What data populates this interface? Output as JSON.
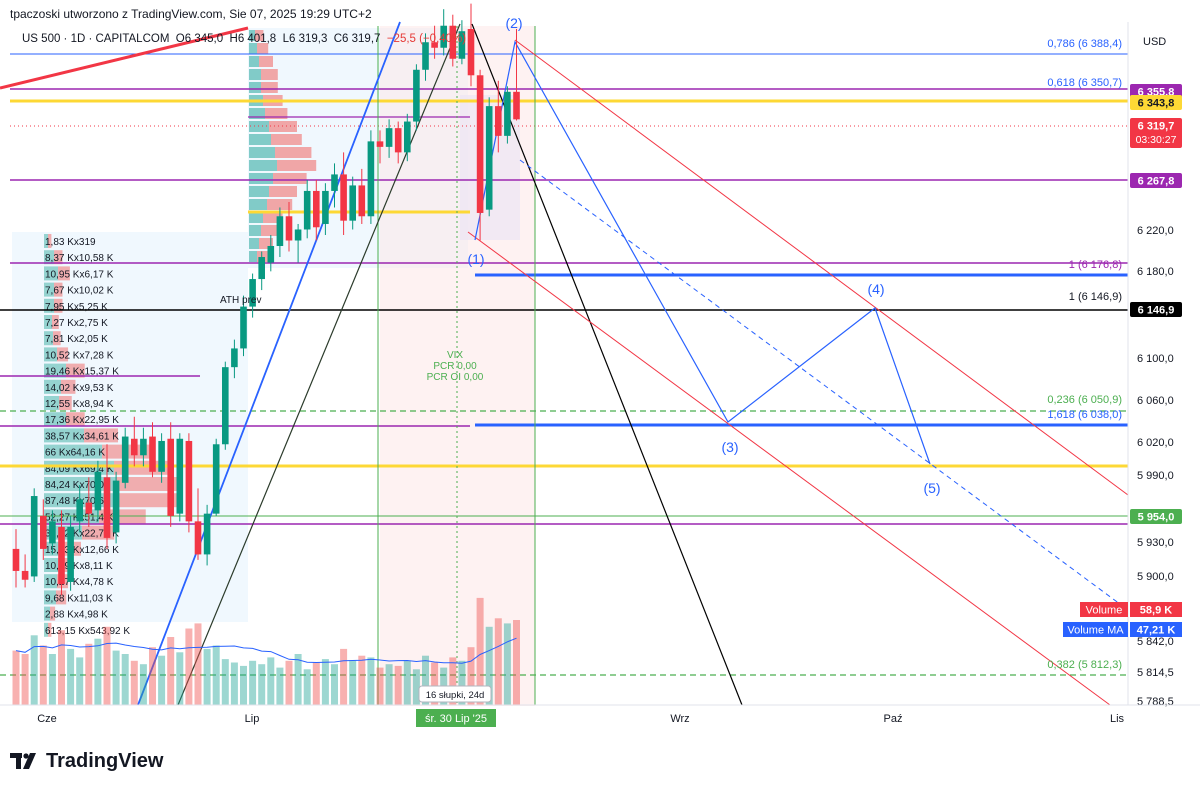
{
  "header": {
    "publisher_line": "tpaczoski utworzono z TradingView.com, Sie 07, 2025 19:29 UTC+2"
  },
  "symbol_line": {
    "name": "US 500 · 1D · CAPITALCOM",
    "open": "O6 345,0",
    "high": "H6 401,8",
    "low": "L6 319,3",
    "close": "C6 319,7",
    "change": "−25,5 (−0,40%)"
  },
  "chart_data": {
    "type": "candlestick",
    "symbol": "US 500",
    "timeframe": "1D",
    "currency_label": "USD",
    "y_axis_ticks": [
      "6 220,0",
      "6 180,0",
      "6 100,0",
      "6 060,0",
      "6 020,0",
      "5 990,0",
      "5 930,0",
      "5 900,0",
      "5 842,0",
      "5 814,5",
      "5 788,5"
    ],
    "x_axis_ticks": [
      "Cze",
      "Lip",
      "Wrz",
      "Paź",
      "Lis"
    ],
    "x_axis_highlight": "śr. 30 Lip '25",
    "range_tooltip": "16 słupki, 24d",
    "price_badges": [
      {
        "label": "6 355,8",
        "color": "#9c27b0"
      },
      {
        "label": "6 343,8",
        "color": "#fdd835"
      },
      {
        "label": "6 319,7",
        "sub": "03:30:27",
        "color": "#f23645"
      },
      {
        "label": "6 267,8",
        "color": "#9c27b0"
      },
      {
        "label": "6 146,9",
        "color": "#000000"
      },
      {
        "label": "5 954,0",
        "color": "#4caf50"
      }
    ],
    "volume_badges": [
      {
        "name": "Volume",
        "value": "58,9 K",
        "color": "#f23645"
      },
      {
        "name": "Volume MA",
        "value": "47,21 K",
        "color": "#2962ff"
      }
    ],
    "fib_levels": [
      {
        "label": "0,786 (6 388,4)",
        "color": "#2962ff"
      },
      {
        "label": "0,618 (6 350,7)",
        "color": "#2962ff"
      },
      {
        "label": "1 (6 176,8)",
        "color": "#9c27b0"
      },
      {
        "label": "1 (6 146,9)",
        "color": "#131722"
      },
      {
        "label": "0,236 (6 050,9)",
        "color": "#4caf50"
      },
      {
        "label": "1,618 (6 038,0)",
        "color": "#2962ff"
      },
      {
        "label": "0,382 (5 812,3)",
        "color": "#4caf50"
      }
    ],
    "wave_labels": [
      "(1)",
      "(2)",
      "(3)",
      "(4)",
      "(5)"
    ],
    "volume_profile_labels": [
      "1,83 Kx319",
      "8,37 Kx10,58 K",
      "10,95 Kx6,17 K",
      "7,67 Kx10,02 K",
      "7,95 Kx5,25 K",
      "7,27 Kx2,75 K",
      "7,81 Kx2,05 K",
      "10,52 Kx7,28 K",
      "19,46 Kx15,37 K",
      "14,02 Kx9,53 K",
      "12,55 Kx8,94 K",
      "17,36 Kx22,95 K",
      "38,57 Kx34,61 K",
      "66 Kx64,16 K",
      "84,09 Kx69,4 K",
      "84,24 Kx70,01 K",
      "87,48 Kx70,63 K",
      "52,27 Kx51,4 K",
      "31,62 Kx22,72 K",
      "15,33 Kx12,66 K",
      "10,89 Kx8,11 K",
      "10,27 Kx4,78 K",
      "9,68 Kx11,03 K",
      "2,88 Kx4,98 K",
      "613,15 Kx543,92 K"
    ],
    "annotations": [
      "ATH prev",
      "VIX",
      "PCR 0,00",
      "PCR OI 0,00"
    ],
    "candles": [
      {
        "t": "d01",
        "o": 5930,
        "h": 5948,
        "l": 5895,
        "c": 5910
      },
      {
        "t": "d02",
        "o": 5910,
        "h": 5925,
        "l": 5895,
        "c": 5902
      },
      {
        "t": "d03",
        "o": 5905,
        "h": 5985,
        "l": 5900,
        "c": 5978
      },
      {
        "t": "d04",
        "o": 5960,
        "h": 5975,
        "l": 5920,
        "c": 5930
      },
      {
        "t": "d05",
        "o": 5935,
        "h": 5965,
        "l": 5925,
        "c": 5955
      },
      {
        "t": "d06",
        "o": 5950,
        "h": 5965,
        "l": 5888,
        "c": 5898
      },
      {
        "t": "d07",
        "o": 5900,
        "h": 5960,
        "l": 5892,
        "c": 5950
      },
      {
        "t": "d08",
        "o": 5955,
        "h": 5988,
        "l": 5945,
        "c": 5975
      },
      {
        "t": "d09",
        "o": 5972,
        "h": 5995,
        "l": 5950,
        "c": 5962
      },
      {
        "t": "d10",
        "o": 5965,
        "h": 6010,
        "l": 5955,
        "c": 6000
      },
      {
        "t": "d11",
        "o": 5995,
        "h": 6025,
        "l": 5930,
        "c": 5940
      },
      {
        "t": "d12",
        "o": 5945,
        "h": 6000,
        "l": 5935,
        "c": 5992
      },
      {
        "t": "d13",
        "o": 5990,
        "h": 6040,
        "l": 5985,
        "c": 6032
      },
      {
        "t": "d14",
        "o": 6030,
        "h": 6050,
        "l": 6005,
        "c": 6015
      },
      {
        "t": "d15",
        "o": 6015,
        "h": 6040,
        "l": 6005,
        "c": 6030
      },
      {
        "t": "d16",
        "o": 6032,
        "h": 6045,
        "l": 5995,
        "c": 6000
      },
      {
        "t": "d17",
        "o": 6000,
        "h": 6035,
        "l": 5990,
        "c": 6028
      },
      {
        "t": "d18",
        "o": 6030,
        "h": 6045,
        "l": 5950,
        "c": 5960
      },
      {
        "t": "d19",
        "o": 5962,
        "h": 6035,
        "l": 5955,
        "c": 6030
      },
      {
        "t": "d20",
        "o": 6028,
        "h": 6035,
        "l": 5945,
        "c": 5955
      },
      {
        "t": "d21",
        "o": 5955,
        "h": 5985,
        "l": 5920,
        "c": 5925
      },
      {
        "t": "d22",
        "o": 5925,
        "h": 5970,
        "l": 5915,
        "c": 5962
      },
      {
        "t": "d23",
        "o": 5962,
        "h": 6030,
        "l": 5960,
        "c": 6025
      },
      {
        "t": "d24",
        "o": 6025,
        "h": 6100,
        "l": 6020,
        "c": 6095
      },
      {
        "t": "d25",
        "o": 6095,
        "h": 6120,
        "l": 6085,
        "c": 6112
      },
      {
        "t": "d26",
        "o": 6112,
        "h": 6160,
        "l": 6105,
        "c": 6150
      },
      {
        "t": "d27",
        "o": 6150,
        "h": 6180,
        "l": 6140,
        "c": 6175
      },
      {
        "t": "d28",
        "o": 6175,
        "h": 6200,
        "l": 6165,
        "c": 6195
      },
      {
        "t": "d29",
        "o": 6190,
        "h": 6215,
        "l": 6182,
        "c": 6205
      },
      {
        "t": "d30",
        "o": 6205,
        "h": 6240,
        "l": 6195,
        "c": 6232
      },
      {
        "t": "d31",
        "o": 6232,
        "h": 6245,
        "l": 6200,
        "c": 6210
      },
      {
        "t": "d32",
        "o": 6210,
        "h": 6225,
        "l": 6190,
        "c": 6220
      },
      {
        "t": "d33",
        "o": 6220,
        "h": 6265,
        "l": 6212,
        "c": 6255
      },
      {
        "t": "d34",
        "o": 6255,
        "h": 6265,
        "l": 6210,
        "c": 6222
      },
      {
        "t": "d35",
        "o": 6225,
        "h": 6262,
        "l": 6215,
        "c": 6255
      },
      {
        "t": "d36",
        "o": 6255,
        "h": 6280,
        "l": 6240,
        "c": 6270
      },
      {
        "t": "d37",
        "o": 6270,
        "h": 6290,
        "l": 6215,
        "c": 6228
      },
      {
        "t": "d38",
        "o": 6228,
        "h": 6268,
        "l": 6220,
        "c": 6260
      },
      {
        "t": "d39",
        "o": 6260,
        "h": 6275,
        "l": 6225,
        "c": 6232
      },
      {
        "t": "d40",
        "o": 6232,
        "h": 6310,
        "l": 6225,
        "c": 6300
      },
      {
        "t": "d41",
        "o": 6300,
        "h": 6310,
        "l": 6280,
        "c": 6295
      },
      {
        "t": "d42",
        "o": 6295,
        "h": 6320,
        "l": 6285,
        "c": 6312
      },
      {
        "t": "d43",
        "o": 6312,
        "h": 6318,
        "l": 6280,
        "c": 6290
      },
      {
        "t": "d44",
        "o": 6290,
        "h": 6325,
        "l": 6282,
        "c": 6318
      },
      {
        "t": "d45",
        "o": 6318,
        "h": 6370,
        "l": 6310,
        "c": 6365
      },
      {
        "t": "d46",
        "o": 6365,
        "h": 6398,
        "l": 6355,
        "c": 6390
      },
      {
        "t": "d47",
        "o": 6390,
        "h": 6405,
        "l": 6375,
        "c": 6385
      },
      {
        "t": "d48",
        "o": 6385,
        "h": 6420,
        "l": 6378,
        "c": 6405
      },
      {
        "t": "d49",
        "o": 6405,
        "h": 6415,
        "l": 6368,
        "c": 6375
      },
      {
        "t": "d50",
        "o": 6375,
        "h": 6410,
        "l": 6370,
        "c": 6400
      },
      {
        "t": "d51",
        "o": 6402,
        "h": 6425,
        "l": 6350,
        "c": 6360
      },
      {
        "t": "d52",
        "o": 6360,
        "h": 6365,
        "l": 6210,
        "c": 6235
      },
      {
        "t": "d53",
        "o": 6238,
        "h": 6340,
        "l": 6232,
        "c": 6332
      },
      {
        "t": "d54",
        "o": 6332,
        "h": 6355,
        "l": 6290,
        "c": 6305
      },
      {
        "t": "d55",
        "o": 6305,
        "h": 6350,
        "l": 6298,
        "c": 6345
      },
      {
        "t": "d56",
        "o": 6345,
        "h": 6402,
        "l": 6319,
        "c": 6320
      }
    ],
    "volume": [
      3.2,
      3.0,
      4.1,
      3.5,
      3.0,
      4.4,
      3.3,
      2.8,
      3.6,
      3.9,
      4.6,
      3.2,
      3.0,
      2.6,
      2.4,
      3.4,
      2.9,
      4.0,
      3.1,
      4.5,
      4.8,
      3.3,
      3.5,
      2.7,
      2.5,
      2.3,
      2.6,
      2.4,
      2.8,
      2.2,
      2.6,
      3.0,
      2.1,
      2.5,
      2.7,
      2.4,
      3.3,
      2.6,
      2.9,
      2.8,
      2.2,
      2.4,
      2.3,
      2.6,
      2.1,
      2.9,
      2.5,
      2.2,
      2.8,
      2.6,
      3.4,
      6.3,
      4.6,
      5.1,
      4.8,
      5.0
    ]
  },
  "branding": {
    "name": "TradingView"
  }
}
